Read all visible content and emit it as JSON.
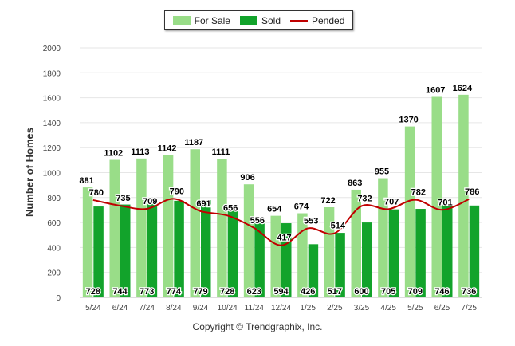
{
  "chart_data": {
    "type": "bar",
    "title": "",
    "xlabel": "",
    "ylabel": "Number of Homes",
    "ylim": [
      0,
      2000
    ],
    "yticks": [
      0,
      200,
      400,
      600,
      800,
      1000,
      1200,
      1400,
      1600,
      1800,
      2000
    ],
    "grid": true,
    "legend_position": "top-center",
    "categories": [
      "5/24",
      "6/24",
      "7/24",
      "8/24",
      "9/24",
      "10/24",
      "11/24",
      "12/24",
      "1/25",
      "2/25",
      "3/25",
      "4/25",
      "5/25",
      "6/25",
      "7/25"
    ],
    "series": [
      {
        "name": "For Sale",
        "kind": "bar",
        "color": "#99dd88",
        "values": [
          881,
          1102,
          1113,
          1142,
          1187,
          1111,
          906,
          654,
          674,
          722,
          863,
          955,
          1370,
          1607,
          1624
        ]
      },
      {
        "name": "Sold",
        "kind": "bar",
        "color": "#12a32b",
        "values": [
          728,
          744,
          773,
          774,
          779,
          728,
          623,
          594,
          426,
          517,
          600,
          705,
          709,
          746,
          736
        ]
      },
      {
        "name": "Pended",
        "kind": "line",
        "color": "#c00000",
        "values": [
          780,
          735,
          709,
          790,
          691,
          656,
          556,
          417,
          553,
          514,
          732,
          707,
          782,
          701,
          786
        ]
      }
    ]
  },
  "legend": {
    "for_sale": "For Sale",
    "sold": "Sold",
    "pended": "Pended"
  },
  "copyright": "Copyright © Trendgraphix, Inc."
}
